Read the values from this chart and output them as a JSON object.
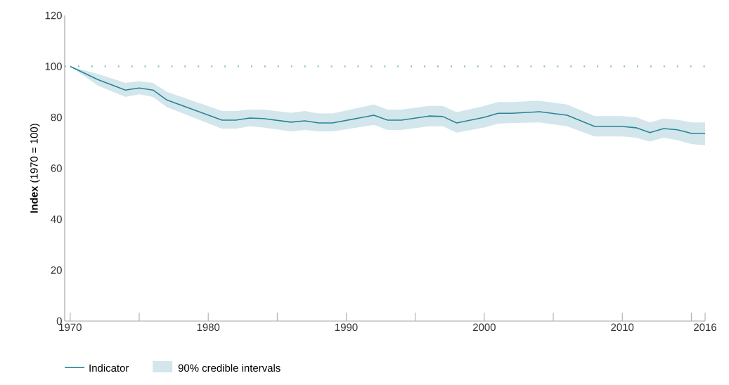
{
  "chart_data": {
    "type": "line",
    "ylabel": "**Index** (1970 = 100)",
    "x": [
      1970,
      1972,
      1974,
      1975,
      1976,
      1977,
      1981,
      1982,
      1983,
      1984,
      1986,
      1987,
      1988,
      1989,
      1992,
      1993,
      1994,
      1996,
      1997,
      1998,
      2000,
      2001,
      2002,
      2004,
      2006,
      2008,
      2010,
      2011,
      2012,
      2013,
      2014,
      2015,
      2016
    ],
    "series": [
      {
        "name": "Indicator",
        "color": "#2a8496",
        "values": [
          100,
          94.8,
          90.7,
          91.5,
          90.7,
          86.8,
          78.9,
          78.9,
          79.7,
          79.5,
          78.1,
          78.6,
          77.8,
          77.8,
          80.8,
          78.9,
          78.9,
          80.5,
          80.3,
          77.8,
          80,
          81.6,
          81.6,
          82.2,
          80.8,
          76.4,
          76.4,
          75.9,
          74,
          75.6,
          75.1,
          73.7,
          73.7
        ],
        "lower": [
          100,
          92.5,
          88,
          89,
          88,
          84,
          75.5,
          75.5,
          76.5,
          76,
          74.5,
          75,
          74.5,
          74.5,
          77,
          75,
          75,
          76.5,
          76.5,
          74,
          76,
          77.5,
          77.8,
          78,
          76.5,
          72.5,
          72.5,
          72,
          70.5,
          72,
          71,
          69.5,
          69
        ],
        "upper": [
          100,
          97,
          93.5,
          94.2,
          93.5,
          90,
          82.5,
          82.5,
          83,
          83,
          81.8,
          82.5,
          81.5,
          81.5,
          85,
          83,
          83,
          84.5,
          84.5,
          82,
          84.5,
          86,
          86,
          86.5,
          85,
          80.5,
          80.5,
          80,
          78,
          79.5,
          79,
          78,
          78
        ]
      }
    ],
    "annotations": [
      "90% credible intervals"
    ],
    "xlim": [
      1969.6,
      2016
    ],
    "xticks": [
      1970,
      {
        "value": 1975,
        "label": null
      },
      1980,
      {
        "value": 1985,
        "label": null
      },
      1990,
      {
        "value": 1995,
        "label": null
      },
      2000,
      {
        "value": 2005,
        "label": null
      },
      2010,
      {
        "value": 2015,
        "label": null
      },
      2016
    ],
    "ylim": [
      0,
      120
    ],
    "yticks": [
      0,
      20,
      40,
      60,
      80,
      100,
      120
    ],
    "ref_lines": [
      {
        "axis": "y",
        "value": 100,
        "color": "#8fc0cb",
        "line_style": "dotted"
      }
    ],
    "legend": "bottom",
    "grid": false,
    "marker": "none",
    "line_style": "solid"
  }
}
